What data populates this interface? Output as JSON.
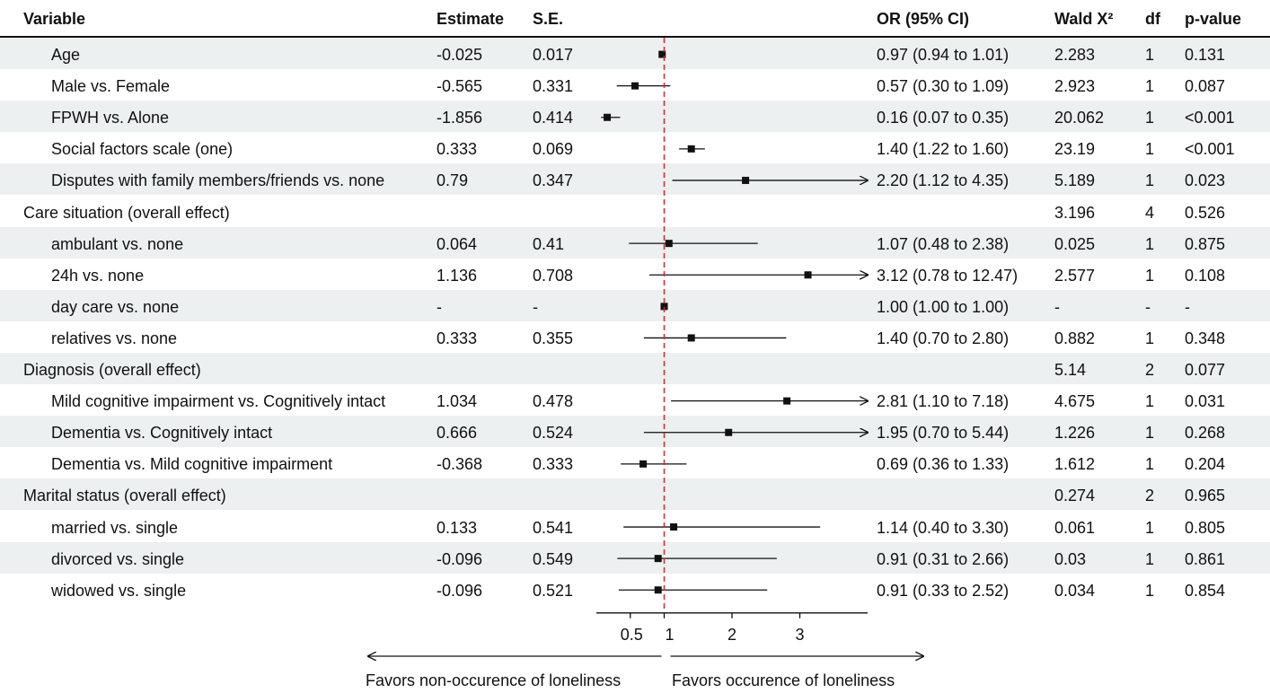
{
  "colors": {
    "shade": "#edf0f0",
    "reference_line": "#d62728",
    "ink": "#111111"
  },
  "header": {
    "variable": "Variable",
    "estimate": "Estimate",
    "se": "S.E.",
    "or": "OR (95% CI)",
    "wald": "Wald X²",
    "df": "df",
    "p": "p-value"
  },
  "footer": {
    "left": "Favors non-occurence of loneliness",
    "right": "Favors occurence of loneliness"
  },
  "chart_data": {
    "type": "forest",
    "reference": 1,
    "xlim": [
      0.0,
      4.0
    ],
    "ticks": [
      {
        "value": 0.5,
        "label": "0.5"
      },
      {
        "value": 1,
        "label": "1"
      },
      {
        "value": 2,
        "label": "2"
      },
      {
        "value": 3,
        "label": "3"
      }
    ],
    "rows": [
      {
        "label": "Age",
        "estimate": "-0.025",
        "se": "0.017",
        "or_text": "0.97 (0.94 to 1.01)",
        "wald": "2.283",
        "df": "1",
        "p": "0.131",
        "sub": true,
        "shaded": true,
        "or": 0.97,
        "lo": 0.94,
        "hi": 1.01
      },
      {
        "label": "Male vs. Female",
        "estimate": "-0.565",
        "se": "0.331",
        "or_text": "0.57 (0.30 to 1.09)",
        "wald": "2.923",
        "df": "1",
        "p": "0.087",
        "sub": true,
        "shaded": false,
        "or": 0.57,
        "lo": 0.3,
        "hi": 1.09
      },
      {
        "label": "FPWH vs. Alone",
        "estimate": "-1.856",
        "se": "0.414",
        "or_text": "0.16 (0.07 to 0.35)",
        "wald": "20.062",
        "df": "1",
        "p": "<0.001",
        "sub": true,
        "shaded": true,
        "or": 0.16,
        "lo": 0.07,
        "hi": 0.35
      },
      {
        "label": "Social factors scale (one)",
        "estimate": "0.333",
        "se": "0.069",
        "or_text": "1.40 (1.22 to 1.60)",
        "wald": "23.19",
        "df": "1",
        "p": "<0.001",
        "sub": true,
        "shaded": false,
        "or": 1.4,
        "lo": 1.22,
        "hi": 1.6
      },
      {
        "label": "Disputes with family members/friends vs. none",
        "estimate": "0.79",
        "se": "0.347",
        "or_text": "2.20 (1.12 to 4.35)",
        "wald": "5.189",
        "df": "1",
        "p": "0.023",
        "sub": true,
        "shaded": true,
        "or": 2.2,
        "lo": 1.12,
        "hi": 4.35
      },
      {
        "label": "Care situation (overall effect)",
        "estimate": "",
        "se": "",
        "or_text": "",
        "wald": "3.196",
        "df": "4",
        "p": "0.526",
        "sub": false,
        "shaded": false,
        "or": null,
        "lo": null,
        "hi": null
      },
      {
        "label": "ambulant vs. none",
        "estimate": "0.064",
        "se": "0.41",
        "or_text": "1.07 (0.48 to 2.38)",
        "wald": "0.025",
        "df": "1",
        "p": "0.875",
        "sub": true,
        "shaded": true,
        "or": 1.07,
        "lo": 0.48,
        "hi": 2.38
      },
      {
        "label": "24h vs. none",
        "estimate": "1.136",
        "se": "0.708",
        "or_text": "3.12 (0.78 to 12.47)",
        "wald": "2.577",
        "df": "1",
        "p": "0.108",
        "sub": true,
        "shaded": false,
        "or": 3.12,
        "lo": 0.78,
        "hi": 12.47
      },
      {
        "label": "day care vs. none",
        "estimate": "-",
        "se": "-",
        "or_text": "1.00 (1.00 to 1.00)",
        "wald": "-",
        "df": "-",
        "p": "-",
        "sub": true,
        "shaded": true,
        "or": 1.0,
        "lo": 1.0,
        "hi": 1.0
      },
      {
        "label": "relatives vs. none",
        "estimate": "0.333",
        "se": "0.355",
        "or_text": "1.40 (0.70 to 2.80)",
        "wald": "0.882",
        "df": "1",
        "p": "0.348",
        "sub": true,
        "shaded": false,
        "or": 1.4,
        "lo": 0.7,
        "hi": 2.8
      },
      {
        "label": "Diagnosis (overall effect)",
        "estimate": "",
        "se": "",
        "or_text": "",
        "wald": "5.14",
        "df": "2",
        "p": "0.077",
        "sub": false,
        "shaded": true,
        "or": null,
        "lo": null,
        "hi": null
      },
      {
        "label": "Mild cognitive impairment vs. Cognitively intact",
        "estimate": "1.034",
        "se": "0.478",
        "or_text": "2.81 (1.10 to 7.18)",
        "wald": "4.675",
        "df": "1",
        "p": "0.031",
        "sub": true,
        "shaded": false,
        "or": 2.81,
        "lo": 1.1,
        "hi": 7.18
      },
      {
        "label": "Dementia vs. Cognitively intact",
        "estimate": "0.666",
        "se": "0.524",
        "or_text": "1.95 (0.70 to 5.44)",
        "wald": "1.226",
        "df": "1",
        "p": "0.268",
        "sub": true,
        "shaded": true,
        "or": 1.95,
        "lo": 0.7,
        "hi": 5.44
      },
      {
        "label": "Dementia vs. Mild cognitive impairment",
        "estimate": "-0.368",
        "se": "0.333",
        "or_text": "0.69 (0.36 to 1.33)",
        "wald": "1.612",
        "df": "1",
        "p": "0.204",
        "sub": true,
        "shaded": false,
        "or": 0.69,
        "lo": 0.36,
        "hi": 1.33
      },
      {
        "label": "Marital status (overall effect)",
        "estimate": "",
        "se": "",
        "or_text": "",
        "wald": "0.274",
        "df": "2",
        "p": "0.965",
        "sub": false,
        "shaded": true,
        "or": null,
        "lo": null,
        "hi": null
      },
      {
        "label": "married vs. single",
        "estimate": "0.133",
        "se": "0.541",
        "or_text": "1.14 (0.40 to 3.30)",
        "wald": "0.061",
        "df": "1",
        "p": "0.805",
        "sub": true,
        "shaded": false,
        "or": 1.14,
        "lo": 0.4,
        "hi": 3.3
      },
      {
        "label": "divorced vs. single",
        "estimate": "-0.096",
        "se": "0.549",
        "or_text": "0.91 (0.31 to 2.66)",
        "wald": "0.03",
        "df": "1",
        "p": "0.861",
        "sub": true,
        "shaded": true,
        "or": 0.91,
        "lo": 0.31,
        "hi": 2.66
      },
      {
        "label": "widowed vs. single",
        "estimate": "-0.096",
        "se": "0.521",
        "or_text": "0.91 (0.33 to 2.52)",
        "wald": "0.034",
        "df": "1",
        "p": "0.854",
        "sub": true,
        "shaded": false,
        "or": 0.91,
        "lo": 0.33,
        "hi": 2.52
      }
    ]
  }
}
